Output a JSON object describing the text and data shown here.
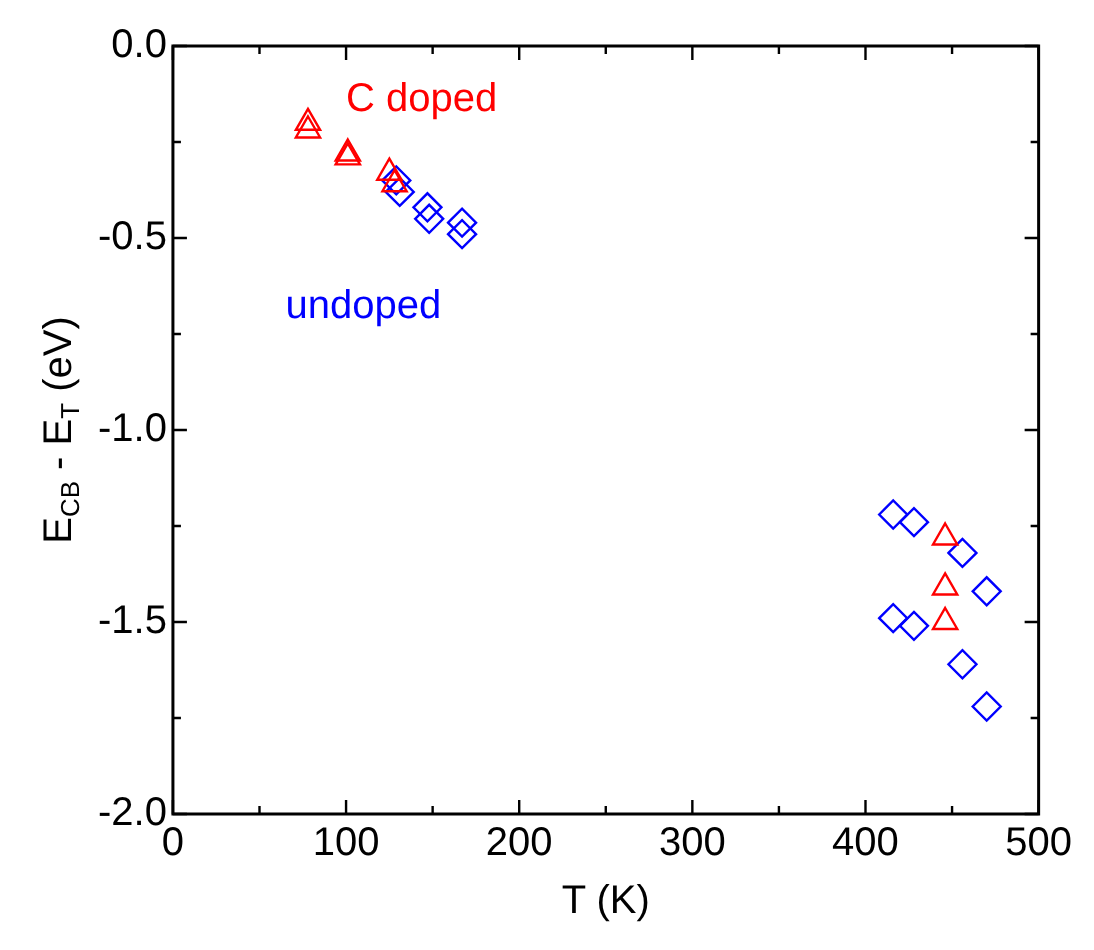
{
  "chart_data": {
    "type": "scatter",
    "xlabel": "T (K)",
    "ylabel": "E$_{CB}$ - E$_{T}$ (eV)",
    "xlim": [
      0,
      500
    ],
    "xticks": [
      0,
      {
        "value": 50,
        "label": null
      },
      100,
      {
        "value": 150,
        "label": null
      },
      200,
      {
        "value": 250,
        "label": null
      },
      300,
      {
        "value": 350,
        "label": null
      },
      400,
      {
        "value": 450,
        "label": null
      },
      500
    ],
    "ylim": [
      -2,
      0
    ],
    "yticks": [
      {
        "value": -2,
        "label": "-2.0"
      },
      {
        "value": -1.75,
        "label": null
      },
      -1.5,
      {
        "value": -1.25,
        "label": null
      },
      {
        "value": -1,
        "label": "-1.0"
      },
      {
        "value": -0.75,
        "label": null
      },
      -0.5,
      {
        "value": -0.25,
        "label": null
      },
      {
        "value": 0,
        "label": "0.0"
      }
    ],
    "grid": false,
    "legend": false,
    "series": [
      {
        "name": "C doped",
        "color": "#ff0000",
        "marker": "triangle",
        "x": [
          78,
          78,
          101,
          101,
          125,
          128,
          446,
          446,
          446
        ],
        "values": [
          -0.2,
          -0.22,
          -0.28,
          -0.29,
          -0.33,
          -0.36,
          -1.28,
          -1.41,
          -1.5
        ]
      },
      {
        "name": "undoped",
        "color": "#0000ff",
        "marker": "diamond",
        "x": [
          129,
          131,
          147,
          148,
          167,
          167,
          416,
          428,
          456,
          470,
          416,
          428,
          456,
          470
        ],
        "values": [
          -0.35,
          -0.38,
          -0.42,
          -0.45,
          -0.46,
          -0.49,
          -1.22,
          -1.24,
          -1.32,
          -1.42,
          -1.49,
          -1.51,
          -1.61,
          -1.72
        ]
      }
    ]
  }
}
